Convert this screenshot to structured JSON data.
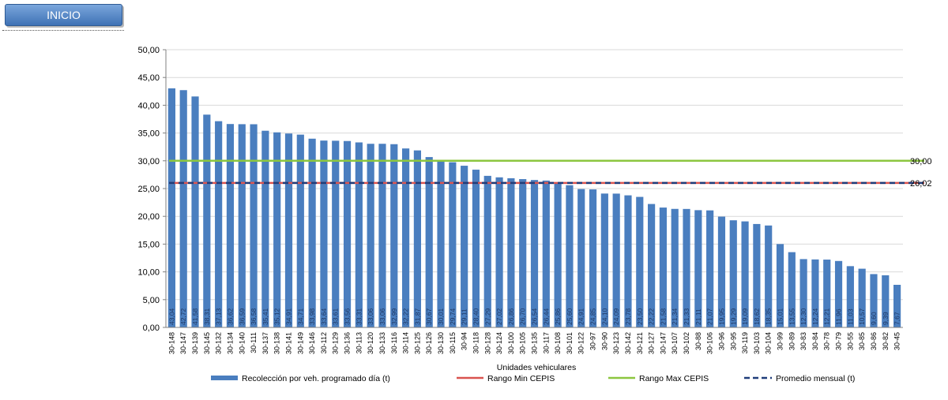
{
  "header": {
    "inicio_label": "INICIO"
  },
  "colors": {
    "bars": "#4a7ebf",
    "min": "#d9534f",
    "max": "#8cc63f",
    "avg": "#1f3d7a",
    "grid": "#d9d9d9"
  },
  "chart_data": {
    "type": "bar",
    "xlabel": "Unidades vehiculares",
    "ylim": [
      0,
      50
    ],
    "yticks": [
      "0,00",
      "5,00",
      "10,00",
      "15,00",
      "20,00",
      "25,00",
      "30,00",
      "35,00",
      "40,00",
      "45,00",
      "50,00"
    ],
    "categories": [
      "30-148",
      "30-147",
      "30-139",
      "30-145",
      "30-132",
      "30-134",
      "30-140",
      "30-111",
      "30-137",
      "30-138",
      "30-141",
      "30-149",
      "30-146",
      "30-112",
      "30-129",
      "30-136",
      "30-113",
      "30-120",
      "30-133",
      "30-116",
      "30-114",
      "30-125",
      "30-126",
      "30-130",
      "30-115",
      "30-94",
      "30-118",
      "30-128",
      "30-124",
      "30-100",
      "30-105",
      "30-135",
      "30-117",
      "30-108",
      "30-101",
      "30-122",
      "30-97",
      "30-90",
      "30-123",
      "30-142",
      "30-121",
      "30-127",
      "30-147",
      "30-107",
      "30-102",
      "30-88",
      "30-106",
      "30-96",
      "30-95",
      "30-119",
      "30-103",
      "30-104",
      "30-99",
      "30-89",
      "30-83",
      "30-84",
      "30-78",
      "30-79",
      "30-55",
      "30-85",
      "30-86",
      "30-82",
      "30-45"
    ],
    "values": [
      43.04,
      42.72,
      41.58,
      38.31,
      37.13,
      36.62,
      36.59,
      36.58,
      35.41,
      35.12,
      34.91,
      34.71,
      33.98,
      33.64,
      33.61,
      33.56,
      33.31,
      33.06,
      33.06,
      32.99,
      32.22,
      31.87,
      30.67,
      30.01,
      29.74,
      29.11,
      28.4,
      27.29,
      27.02,
      26.86,
      26.7,
      26.54,
      26.44,
      25.86,
      25.6,
      24.91,
      24.85,
      24.1,
      24.09,
      23.78,
      23.5,
      22.22,
      21.58,
      21.34,
      21.33,
      21.11,
      21.07,
      19.95,
      19.29,
      19.09,
      18.62,
      18.35,
      15.01,
      13.55,
      12.3,
      12.24,
      12.21,
      11.96,
      11.03,
      10.57,
      9.6,
      9.39,
      7.67
    ],
    "labels": [
      "43,04",
      "42,72",
      "41,58",
      "38,31",
      "37,13",
      "36,62",
      "36,59",
      "36,58",
      "35,41",
      "35,12",
      "34,91",
      "34,71",
      "33,98",
      "33,64",
      "33,61",
      "33,56",
      "33,31",
      "33,06",
      "33,06",
      "32,99",
      "32,22",
      "31,87",
      "30,67",
      "30,01",
      "29,74",
      "29,11",
      "28,40",
      "27,29",
      "27,02",
      "26,86",
      "26,70",
      "26,54",
      "26,44",
      "25,86",
      "25,60",
      "24,91",
      "24,85",
      "24,10",
      "24,09",
      "23,78",
      "23,50",
      "22,22",
      "21,58",
      "21,34",
      "21,33",
      "21,11",
      "21,07",
      "19,95",
      "19,29",
      "19,09",
      "18,62",
      "18,35",
      "15,01",
      "13,55",
      "12,30",
      "12,24",
      "12,21",
      "11,96",
      "11,03",
      "10,57",
      "9,60",
      "9,39",
      "7,67"
    ],
    "reference_lines": {
      "min": {
        "value": 26.02
      },
      "max": {
        "value": 30.0,
        "label": "30,00"
      },
      "avg": {
        "value": 26.02,
        "label": "26,02"
      }
    },
    "legend": {
      "bars": "Recolección por veh. programado día (t)",
      "min": "Rango Min CEPIS",
      "max": "Rango Max CEPIS",
      "avg": "Promedio mensual (t)"
    },
    "grid": true,
    "legend_position": "bottom"
  }
}
